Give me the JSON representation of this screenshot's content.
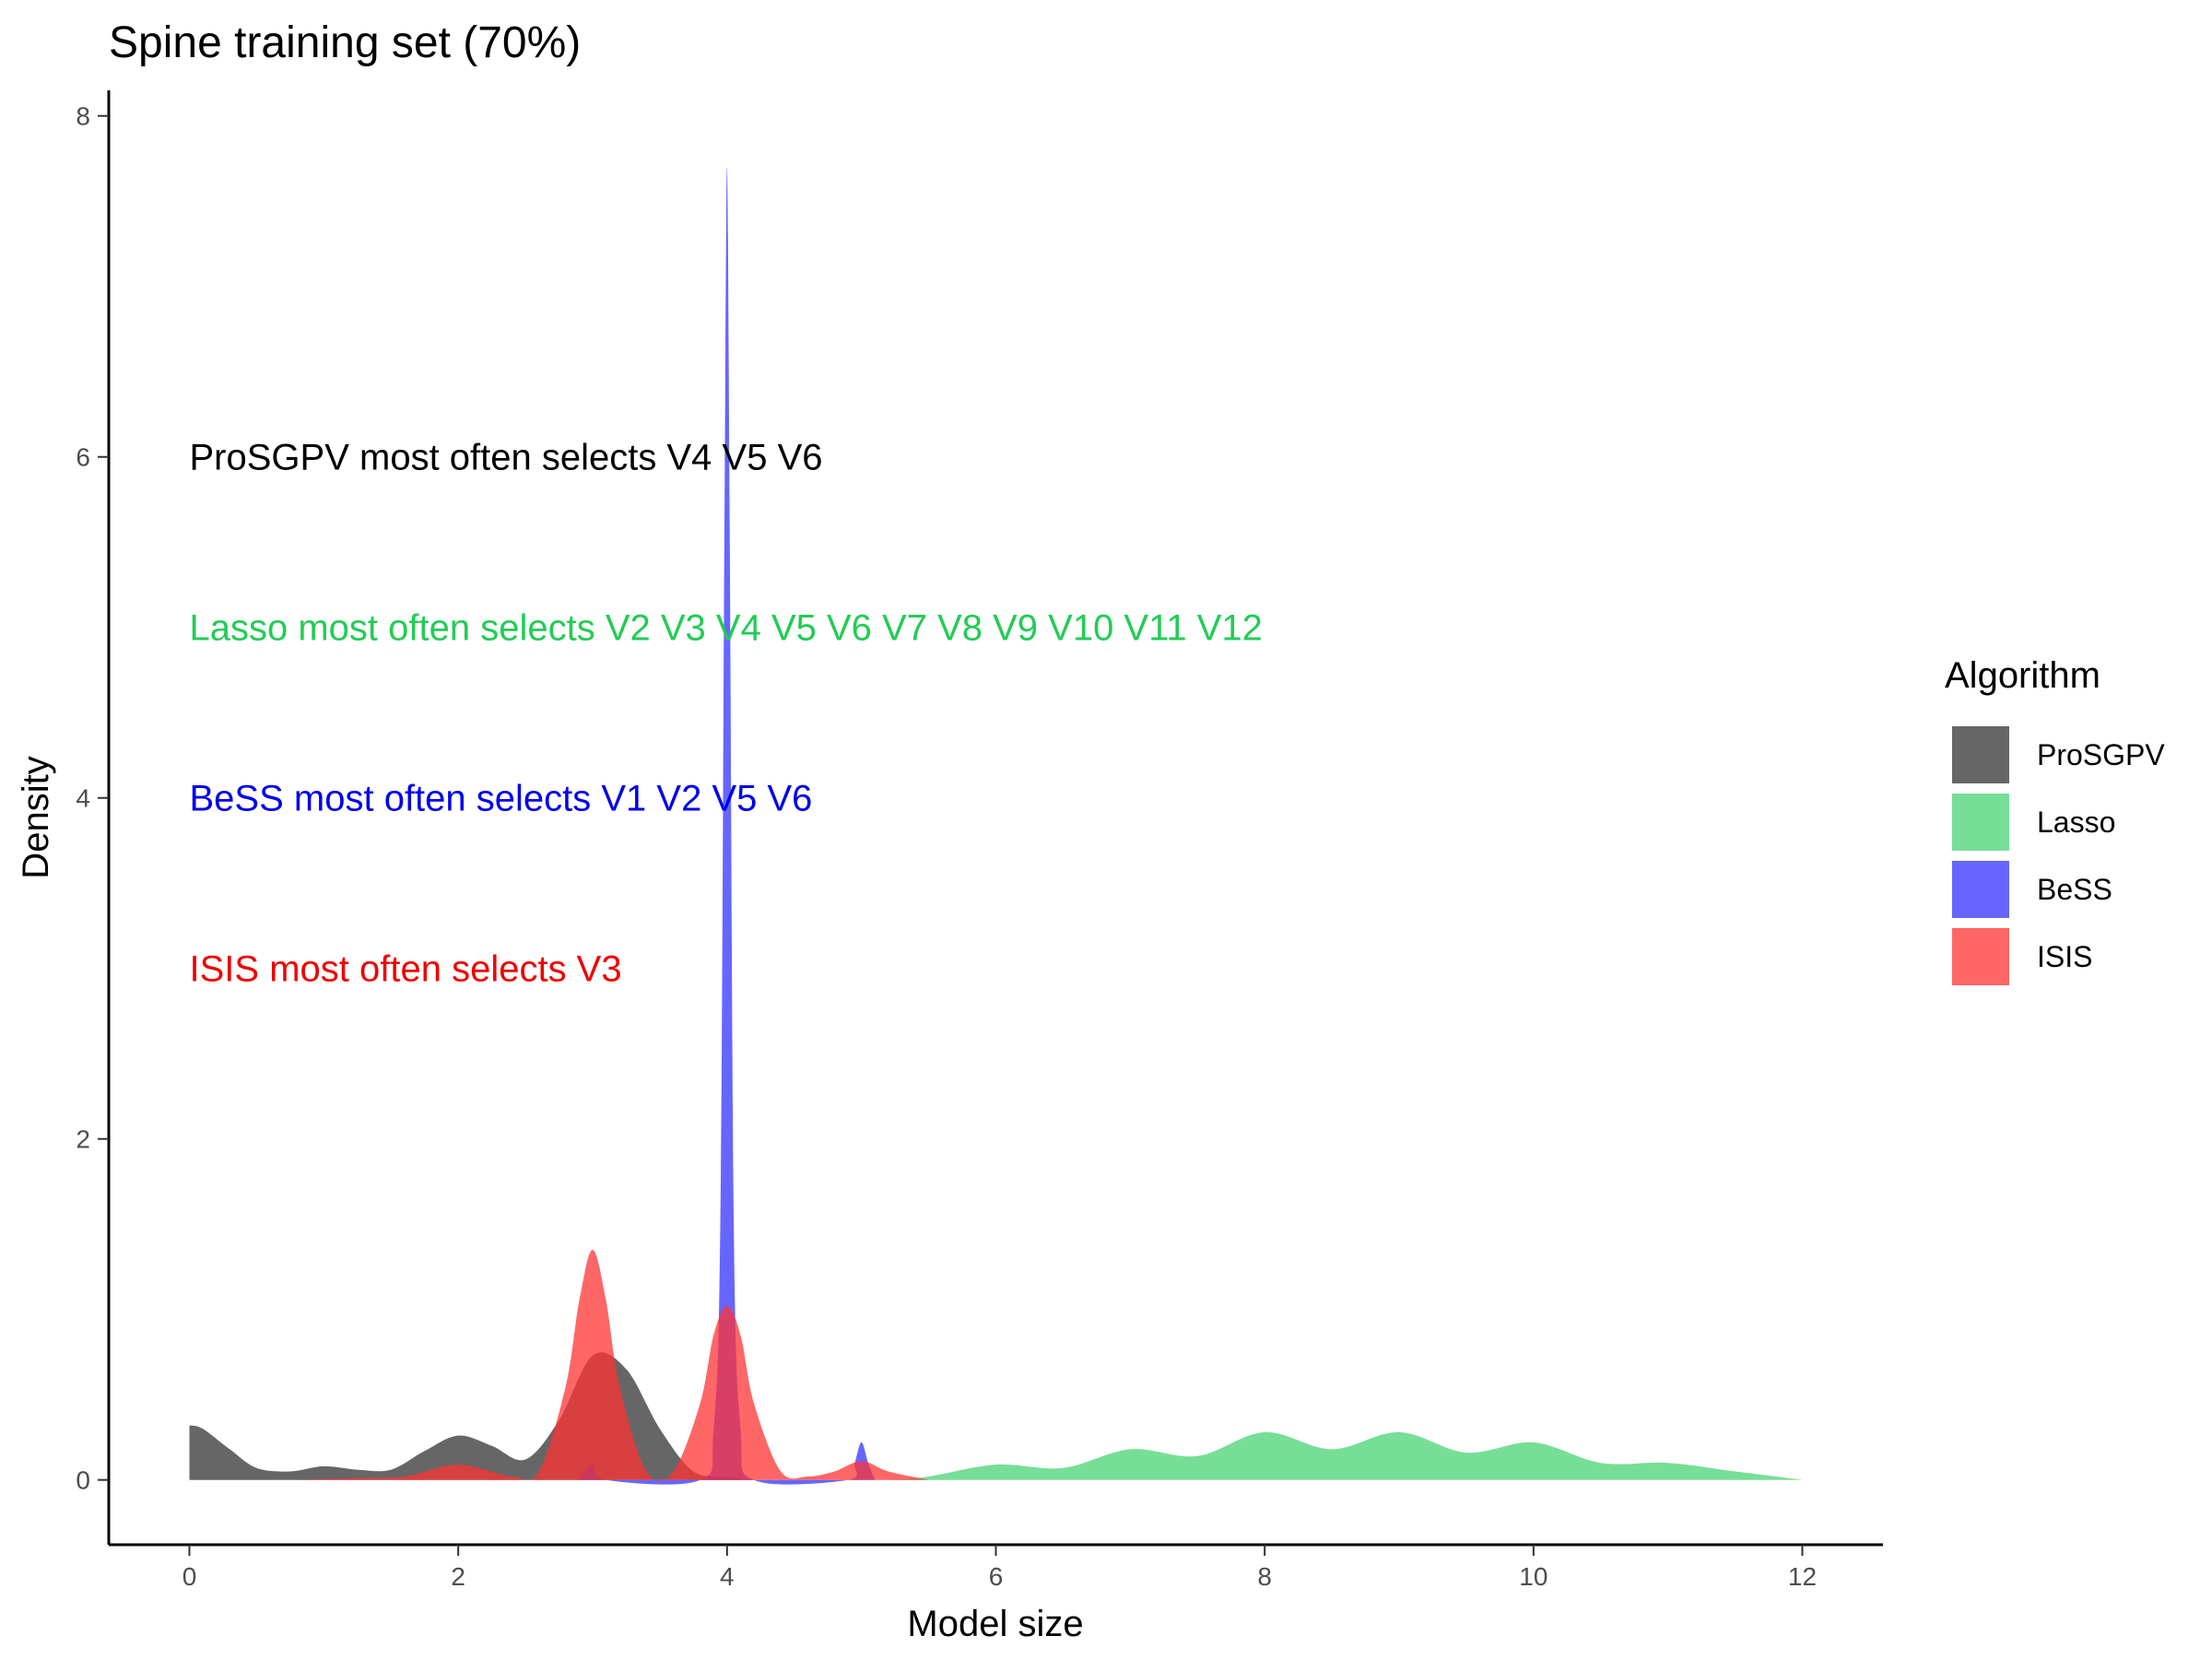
{
  "chart_data": {
    "type": "area",
    "title": "Spine training set (70%)",
    "xlabel": "Model size",
    "ylabel": "Density",
    "xlim": [
      -0.6,
      12.6
    ],
    "ylim": [
      -0.38,
      8.15
    ],
    "xticks": [
      0,
      2,
      4,
      6,
      8,
      10,
      12
    ],
    "yticks": [
      0,
      2,
      4,
      6,
      8
    ],
    "grid": false,
    "legend": {
      "title": "Algorithm",
      "placement": "right",
      "entries": [
        "ProSGPV",
        "Lasso",
        "BeSS",
        "ISIS"
      ]
    },
    "series": [
      {
        "name": "Lasso",
        "color": "#2ecc60",
        "opacity": 0.65,
        "points": [
          [
            5.2,
            0
          ],
          [
            5.5,
            0.02
          ],
          [
            6.0,
            0.09
          ],
          [
            6.5,
            0.07
          ],
          [
            7.0,
            0.18
          ],
          [
            7.5,
            0.14
          ],
          [
            8.0,
            0.28
          ],
          [
            8.5,
            0.18
          ],
          [
            9.0,
            0.28
          ],
          [
            9.5,
            0.16
          ],
          [
            10.0,
            0.22
          ],
          [
            10.5,
            0.1
          ],
          [
            11.0,
            0.1
          ],
          [
            11.5,
            0.05
          ],
          [
            12.0,
            0
          ]
        ]
      },
      {
        "name": "ProSGPV",
        "color": "#333333",
        "opacity": 0.75,
        "points": [
          [
            0.0,
            0.32
          ],
          [
            0.1,
            0.3
          ],
          [
            0.3,
            0.18
          ],
          [
            0.5,
            0.07
          ],
          [
            0.75,
            0.05
          ],
          [
            1.0,
            0.08
          ],
          [
            1.25,
            0.06
          ],
          [
            1.5,
            0.06
          ],
          [
            1.75,
            0.17
          ],
          [
            2.0,
            0.26
          ],
          [
            2.25,
            0.2
          ],
          [
            2.5,
            0.12
          ],
          [
            2.75,
            0.35
          ],
          [
            3.0,
            0.73
          ],
          [
            3.25,
            0.65
          ],
          [
            3.5,
            0.3
          ],
          [
            3.75,
            0.05
          ],
          [
            4.0,
            0.02
          ],
          [
            4.2,
            0
          ]
        ]
      },
      {
        "name": "BeSS",
        "color": "#3333ff",
        "opacity": 0.75,
        "points": [
          [
            2.9,
            0
          ],
          [
            3.0,
            0.1
          ],
          [
            3.1,
            0
          ],
          [
            3.8,
            0
          ],
          [
            3.9,
            0.3
          ],
          [
            3.95,
            1.5
          ],
          [
            3.98,
            5.5
          ],
          [
            4.0,
            7.7
          ],
          [
            4.02,
            5.5
          ],
          [
            4.05,
            1.5
          ],
          [
            4.1,
            0.3
          ],
          [
            4.2,
            0
          ],
          [
            4.9,
            0
          ],
          [
            4.95,
            0.1
          ],
          [
            5.0,
            0.22
          ],
          [
            5.05,
            0.1
          ],
          [
            5.1,
            0
          ]
        ]
      },
      {
        "name": "ISIS",
        "color": "#ff3333",
        "opacity": 0.75,
        "points": [
          [
            0.8,
            0
          ],
          [
            1.2,
            0.01
          ],
          [
            1.6,
            0.02
          ],
          [
            2.0,
            0.09
          ],
          [
            2.4,
            0.02
          ],
          [
            2.6,
            0.05
          ],
          [
            2.8,
            0.55
          ],
          [
            2.9,
            1.05
          ],
          [
            3.0,
            1.35
          ],
          [
            3.1,
            1.05
          ],
          [
            3.2,
            0.55
          ],
          [
            3.4,
            0.05
          ],
          [
            3.6,
            0.05
          ],
          [
            3.8,
            0.45
          ],
          [
            3.9,
            0.85
          ],
          [
            4.0,
            1.02
          ],
          [
            4.1,
            0.85
          ],
          [
            4.2,
            0.45
          ],
          [
            4.4,
            0.05
          ],
          [
            4.6,
            0.02
          ],
          [
            4.8,
            0.05
          ],
          [
            5.0,
            0.11
          ],
          [
            5.2,
            0.05
          ],
          [
            5.5,
            0
          ]
        ]
      }
    ],
    "annotations": [
      {
        "text": "ProSGPV most often selects V4 V5 V6",
        "x": 0,
        "y": 6,
        "color": "#000000"
      },
      {
        "text": "Lasso most often selects V2 V3 V4 V5 V6 V7 V8 V9 V10 V11 V12",
        "x": 0,
        "y": 5,
        "color": "#22cc55"
      },
      {
        "text": "BeSS most often selects V1 V2 V5 V6",
        "x": 0,
        "y": 4,
        "color": "#0000ee"
      },
      {
        "text": "ISIS most often selects V3",
        "x": 0,
        "y": 3,
        "color": "#ee0000"
      }
    ]
  }
}
